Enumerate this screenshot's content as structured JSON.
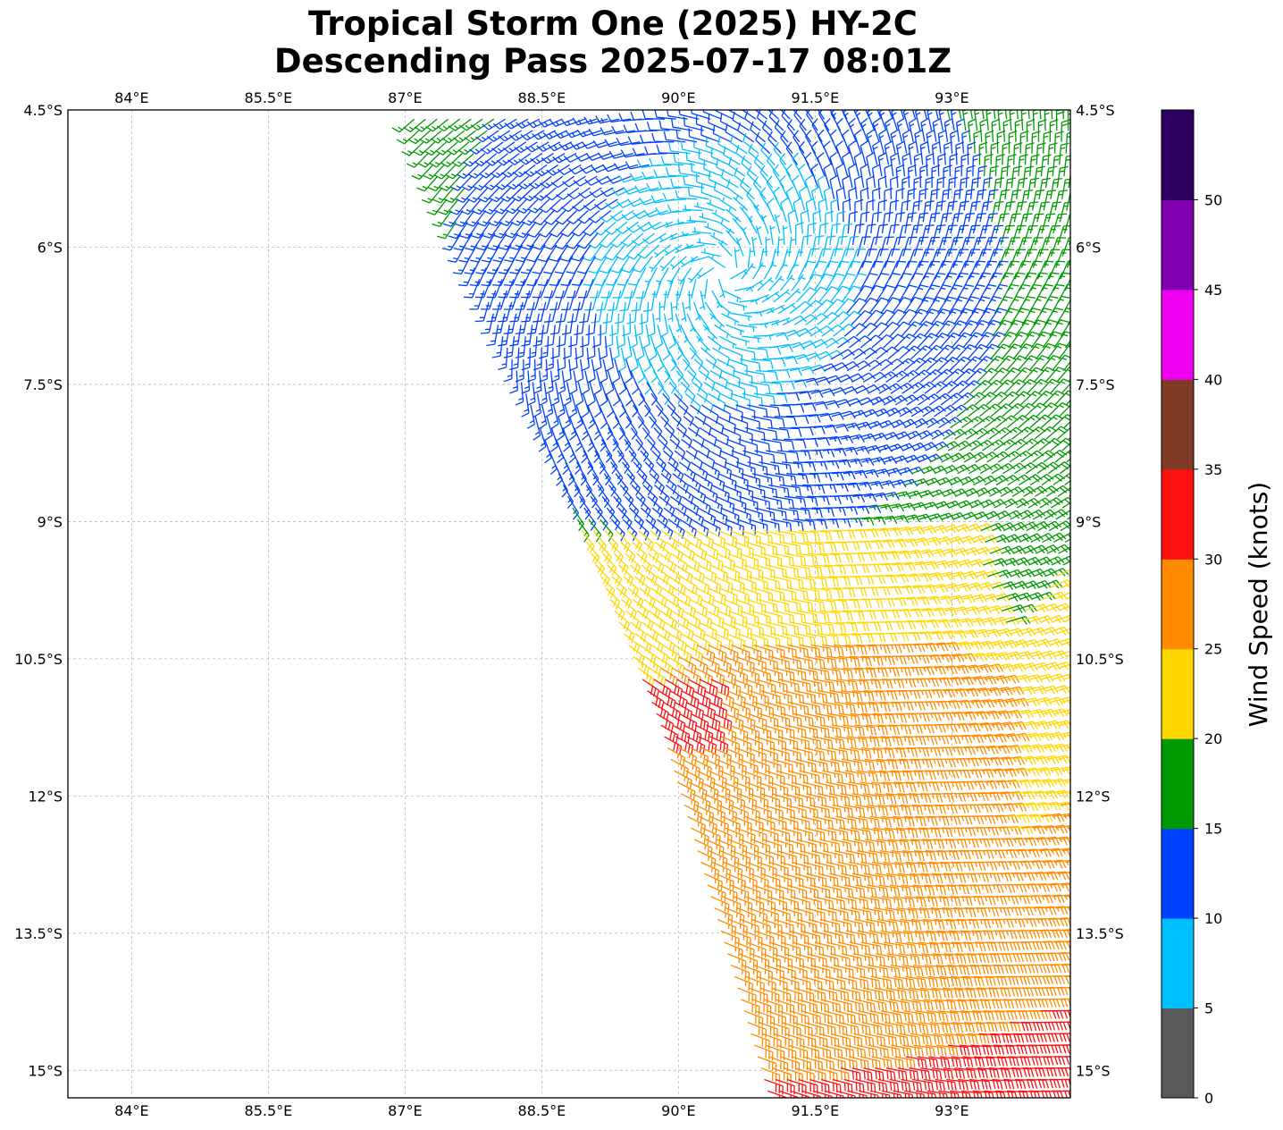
{
  "title": {
    "line1": "Tropical Storm One (2025) HY-2C",
    "line2": "Descending Pass 2025-07-17 08:01Z"
  },
  "map": {
    "lon_range": [
      83.3,
      94.3
    ],
    "lat_range": [
      -15.3,
      -4.5
    ],
    "lon_ticks": [
      84,
      85.5,
      87,
      88.5,
      90,
      91.5,
      93
    ],
    "lon_tick_labels": [
      "84°E",
      "85.5°E",
      "87°E",
      "88.5°E",
      "90°E",
      "91.5°E",
      "93°E"
    ],
    "lat_ticks": [
      -4.5,
      -6,
      -7.5,
      -9,
      -10.5,
      -12,
      -13.5,
      -15
    ],
    "lat_tick_labels": [
      "4.5°S",
      "6°S",
      "7.5°S",
      "9°S",
      "10.5°S",
      "12°S",
      "13.5°S",
      "15°S"
    ],
    "gridlines": true,
    "storm_center": {
      "lon": 90.5,
      "lat": -6.3
    },
    "swath_west_edge": [
      [
        87.1,
        -4.6
      ],
      [
        89.8,
        -11.2
      ],
      [
        91.0,
        -15.3
      ]
    ]
  },
  "colorbar": {
    "label": "Wind Speed (knots)",
    "bounds": [
      0,
      5,
      10,
      15,
      20,
      25,
      30,
      35,
      40,
      45,
      50,
      55
    ],
    "tick_labels": [
      "0",
      "5",
      "10",
      "15",
      "20",
      "25",
      "30",
      "35",
      "40",
      "45",
      "50"
    ],
    "colors": [
      "#595959",
      "#00bfff",
      "#0040ff",
      "#009900",
      "#ffd700",
      "#ff8c00",
      "#ff1010",
      "#7f3a25",
      "#f000f0",
      "#8000b0",
      "#2d0060"
    ]
  },
  "chart_data": {
    "type": "wind_barb_map",
    "units": "knots",
    "speed_zones_knots": {
      "near_center": "5-10",
      "inner_ring": "10-15",
      "north_of_10S": "15-20",
      "southern_band": "20-30",
      "peak_patch_near_89.8E_11S": "30-35"
    }
  }
}
